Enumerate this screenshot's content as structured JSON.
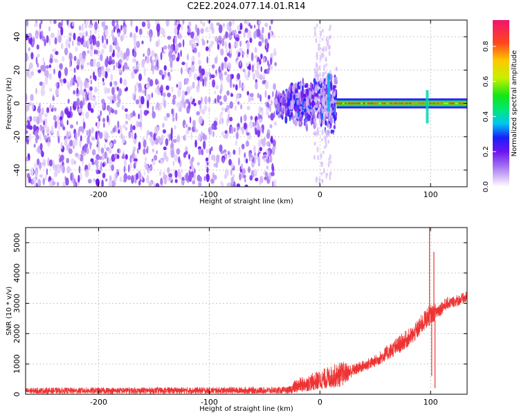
{
  "title": "C2E2.2024.077.14.01.R14",
  "chart_data": [
    {
      "type": "heatmap",
      "name": "spectrogram",
      "xlabel": "Height of straight line (km)",
      "ylabel": "Frequency (Hz)",
      "xlim": [
        -266,
        133
      ],
      "ylim": [
        -50,
        50
      ],
      "x_ticks": [
        -200,
        -100,
        0,
        100
      ],
      "x_tick_labels": [
        "-200",
        "-100",
        "0",
        "100"
      ],
      "y_ticks": [
        -40,
        -20,
        0,
        20,
        40
      ],
      "y_tick_labels": [
        "-40",
        "-20",
        "0",
        "20",
        "40"
      ],
      "grid": true,
      "colorbar": {
        "label": "Normalized spectral amplitude",
        "range": [
          0,
          0.95
        ],
        "ticks": [
          0,
          0.2,
          0.4,
          0.6,
          0.8
        ],
        "tick_labels": [
          "0.0",
          "0.2",
          "0.4",
          "0.6",
          "0.8"
        ]
      },
      "regions": [
        {
          "x_range": [
            -266,
            -40
          ],
          "f_range": [
            -50,
            50
          ],
          "amplitude": 0.15,
          "pattern": "noise"
        },
        {
          "x_range": [
            -40,
            15
          ],
          "f_range": [
            -25,
            25
          ],
          "amplitude": 0.25,
          "pattern": "burst"
        },
        {
          "x_range": [
            15,
            133
          ],
          "f_center": 0,
          "f_halfwidth": 3,
          "amplitude": 0.65,
          "pattern": "narrowband"
        }
      ],
      "features": [
        {
          "x": 8,
          "f_range": [
            -5,
            18
          ],
          "amplitude": 0.35
        },
        {
          "x": 97,
          "f_range": [
            -12,
            8
          ],
          "amplitude": 0.4
        }
      ]
    },
    {
      "type": "line",
      "name": "snr",
      "xlabel": "Height of straight line (km)",
      "ylabel": "SNR (10 * v/v)",
      "xlim": [
        -266,
        133
      ],
      "ylim": [
        0,
        5500
      ],
      "x_ticks": [
        -200,
        -100,
        0,
        100
      ],
      "x_tick_labels": [
        "-200",
        "-100",
        "0",
        "100"
      ],
      "y_ticks": [
        0,
        1000,
        2000,
        3000,
        4000,
        5000
      ],
      "y_tick_labels": [
        "0",
        "1000",
        "2000",
        "3000",
        "4000",
        "5000"
      ],
      "grid": true,
      "color": "#ee3333",
      "envelope": [
        {
          "x": -266,
          "low": 20,
          "high": 220
        },
        {
          "x": -28,
          "low": 20,
          "high": 250
        },
        {
          "x": -22,
          "low": 40,
          "high": 500
        },
        {
          "x": 0,
          "low": 150,
          "high": 800
        },
        {
          "x": 20,
          "low": 250,
          "high": 1100
        },
        {
          "x": 30,
          "low": 600,
          "high": 1000
        },
        {
          "x": 50,
          "low": 900,
          "high": 1300
        },
        {
          "x": 70,
          "low": 1300,
          "high": 1900
        },
        {
          "x": 85,
          "low": 1700,
          "high": 2300
        },
        {
          "x": 97,
          "low": 2200,
          "high": 2900
        },
        {
          "x": 115,
          "low": 2800,
          "high": 3200
        },
        {
          "x": 133,
          "low": 3000,
          "high": 3400
        }
      ],
      "spikes": [
        {
          "x": 99,
          "value": 5500
        },
        {
          "x": 101,
          "value": 600
        },
        {
          "x": 103,
          "value": 4700
        },
        {
          "x": 104,
          "value": 200
        }
      ]
    }
  ]
}
